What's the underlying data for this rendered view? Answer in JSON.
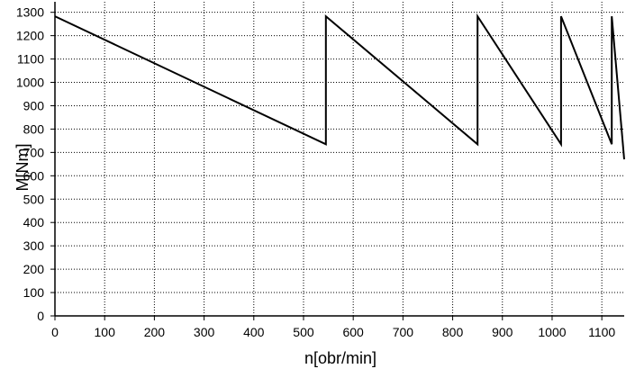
{
  "chart_data": {
    "type": "line",
    "title": "",
    "xlabel": "n[obr/min]",
    "ylabel": "M[Nm]",
    "xlim": [
      0,
      1145
    ],
    "ylim": [
      0,
      1345
    ],
    "xticks": [
      0,
      100,
      200,
      300,
      400,
      500,
      600,
      700,
      800,
      900,
      1000,
      1100
    ],
    "yticks": [
      0,
      100,
      200,
      300,
      400,
      500,
      600,
      700,
      800,
      900,
      1000,
      1100,
      1200,
      1300
    ],
    "grid": true,
    "grid_style": "dotted",
    "line_color": "#000000",
    "series": [
      {
        "name": "",
        "x": [
          0,
          545,
          545,
          850,
          850,
          1018,
          1018,
          1120,
          1120,
          1145
        ],
        "y": [
          1283,
          735,
          1283,
          735,
          1283,
          735,
          1283,
          735,
          1283,
          670
        ]
      }
    ]
  }
}
